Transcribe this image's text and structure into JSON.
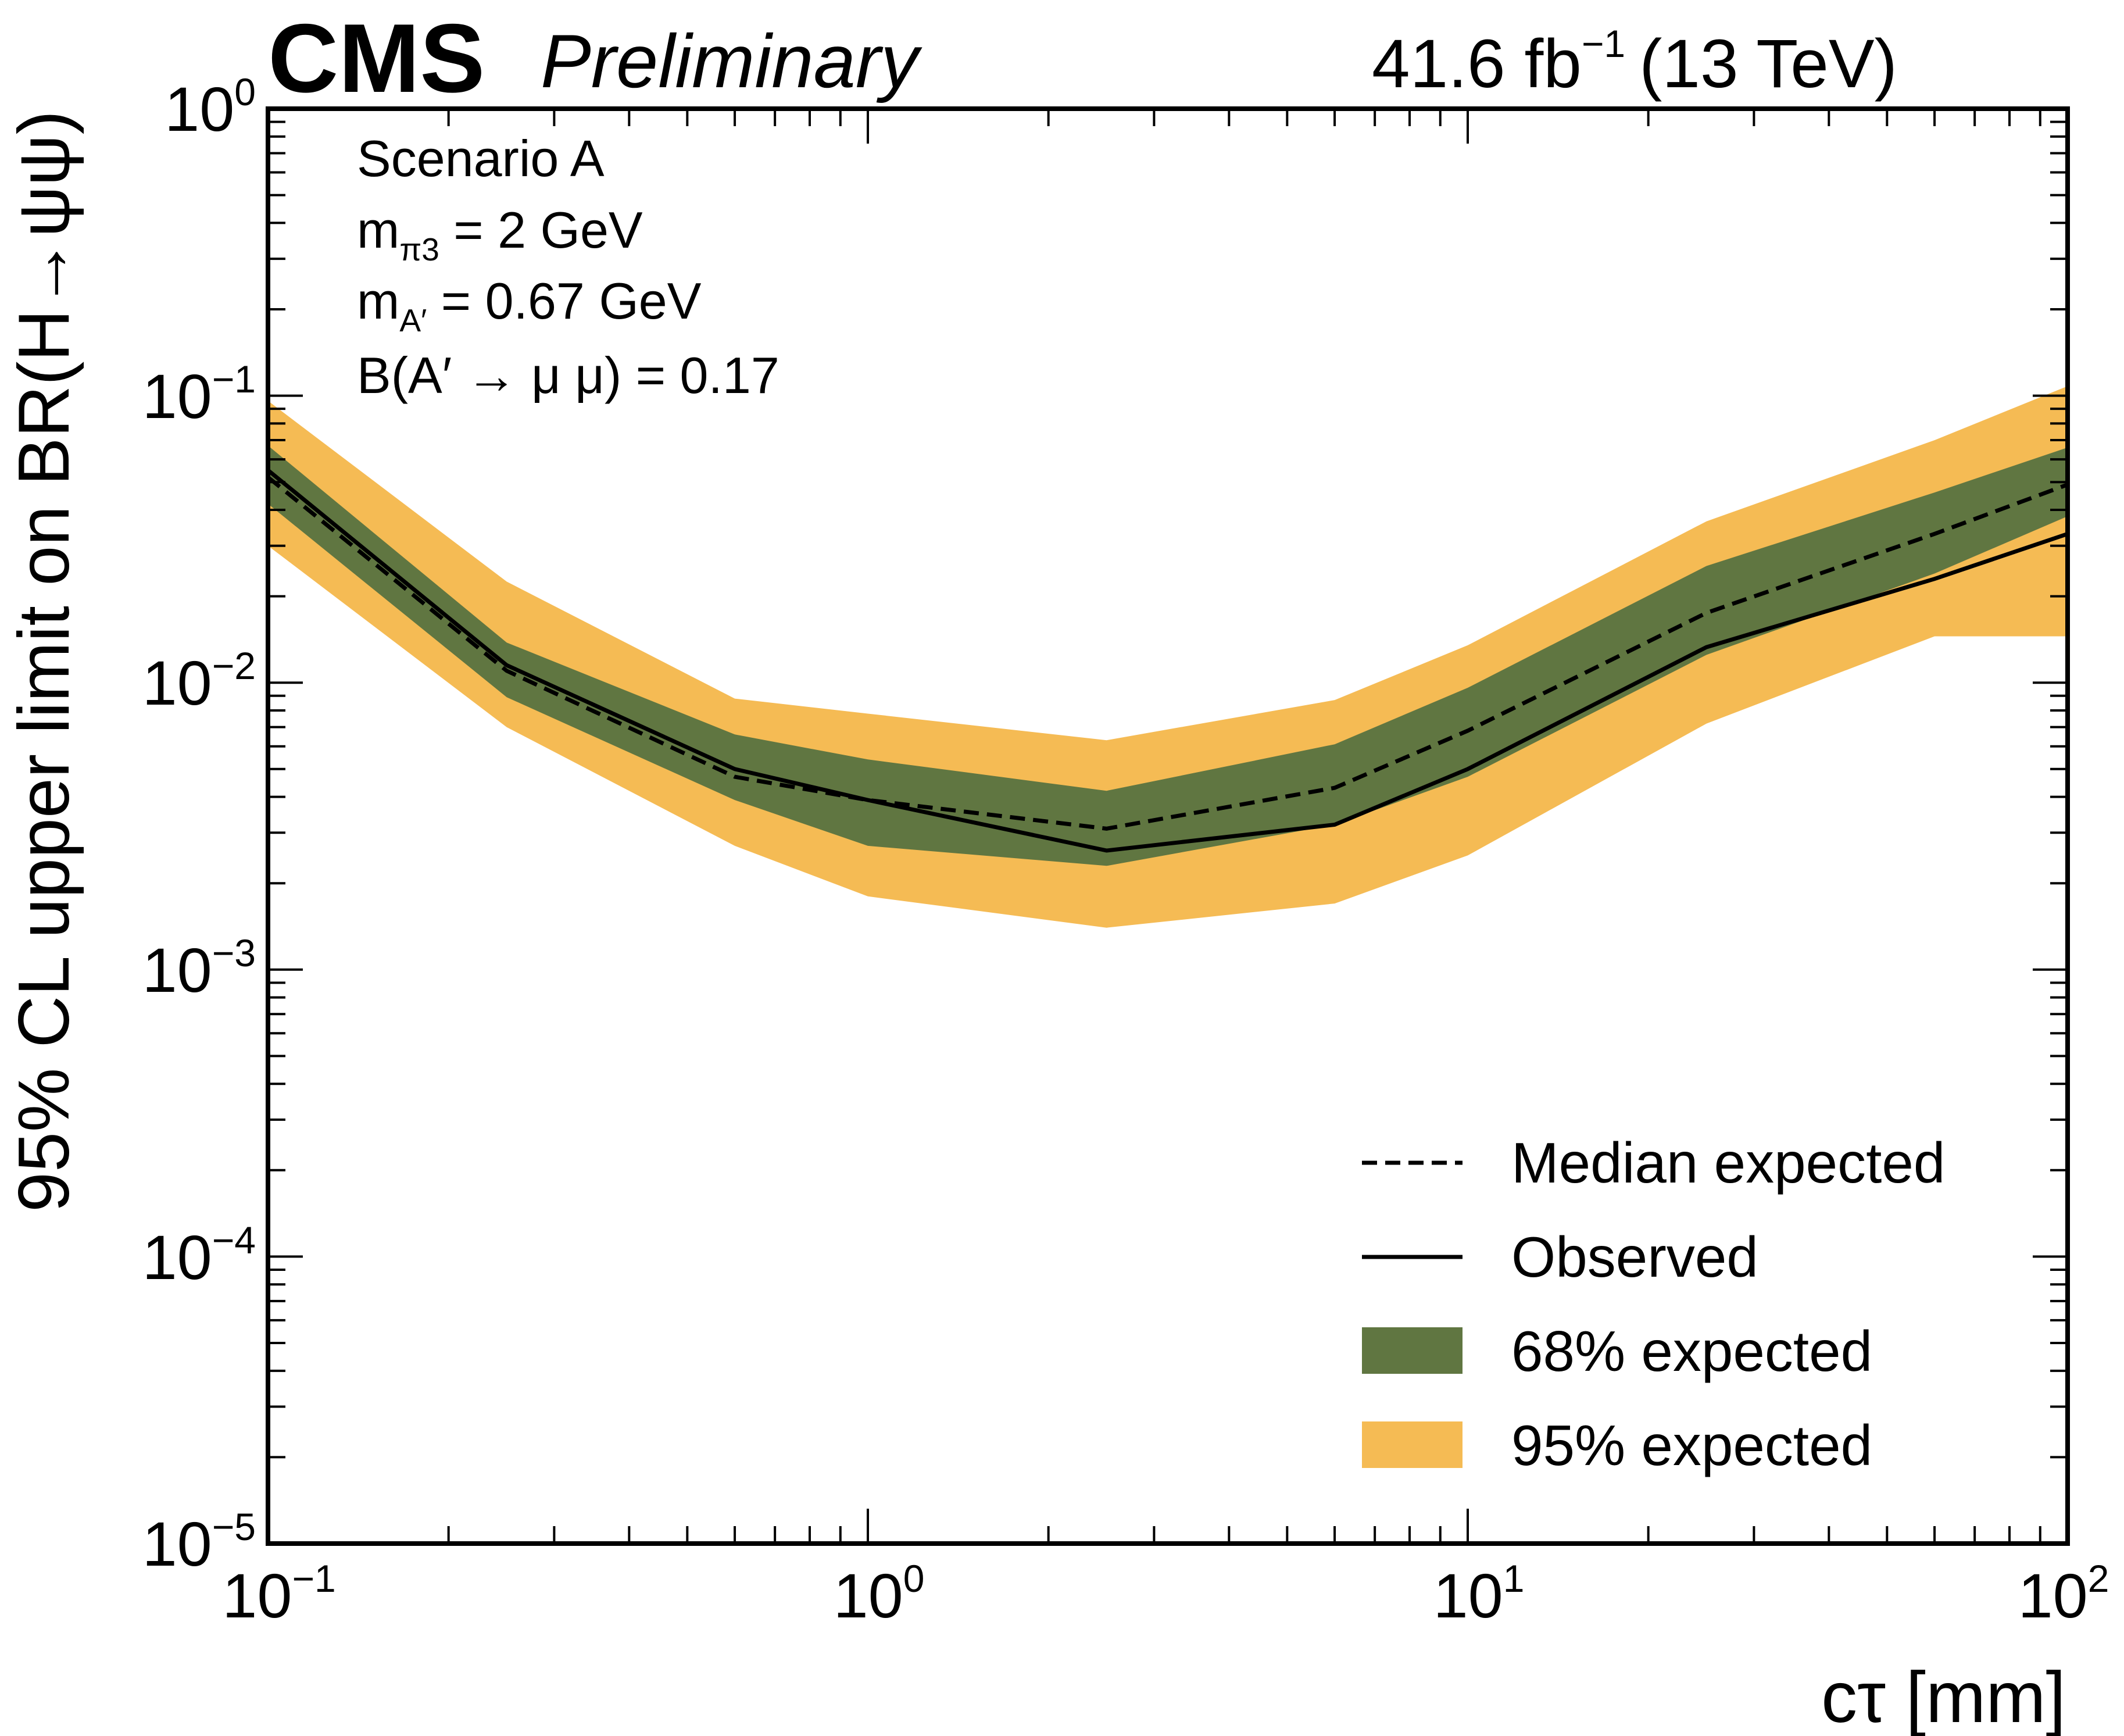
{
  "header": {
    "experiment": "CMS",
    "status": "Preliminary",
    "luminosity": "41.6 fb",
    "lumi_exponent": "−1",
    "energy": "(13 TeV)"
  },
  "info_box": {
    "scenario": "Scenario A",
    "mpi_symbol": "m",
    "mpi_sub": "π3",
    "mpi_value": " = 2 GeV",
    "ma_symbol": "m",
    "ma_sub": "A′",
    "ma_value": " = 0.67 GeV",
    "br_text": "B(A′ → μ μ) = 0.17"
  },
  "axes": {
    "xlabel": "cτ [mm]",
    "ylabel": "95% CL upper limit on BR(H→ψψ)",
    "x_ticks": [
      {
        "base": "10",
        "exp": "−1"
      },
      {
        "base": "10",
        "exp": "0"
      },
      {
        "base": "10",
        "exp": "1"
      },
      {
        "base": "10",
        "exp": "2"
      }
    ],
    "y_ticks": [
      {
        "base": "10",
        "exp": "0"
      },
      {
        "base": "10",
        "exp": "−1"
      },
      {
        "base": "10",
        "exp": "−2"
      },
      {
        "base": "10",
        "exp": "−3"
      },
      {
        "base": "10",
        "exp": "−4"
      },
      {
        "base": "10",
        "exp": "−5"
      }
    ]
  },
  "legend": {
    "median": "Median expected",
    "observed": "Observed",
    "band68": "68% expected",
    "band95": "95% expected"
  },
  "colors": {
    "band68": "#607641",
    "band95": "#F5BB54",
    "line": "#000000"
  },
  "chart_data": {
    "type": "line",
    "title": "CMS Preliminary, 41.6 fb^-1 (13 TeV)",
    "xlabel": "cτ [mm]",
    "ylabel": "95% CL upper limit on BR(H→ψψ)",
    "xscale": "log",
    "yscale": "log",
    "xlim": [
      0.1,
      100
    ],
    "ylim": [
      1e-05,
      1
    ],
    "legend_position": "bottom-right",
    "x": [
      0.1,
      0.25,
      0.6,
      1.0,
      2.5,
      6.0,
      10.0,
      25.0,
      60.0,
      100.0
    ],
    "series": [
      {
        "name": "Observed",
        "style": "solid",
        "values": [
          0.055,
          0.0115,
          0.005,
          0.0039,
          0.0026,
          0.0032,
          0.005,
          0.0133,
          0.023,
          0.033
        ]
      },
      {
        "name": "Median expected",
        "style": "dashed",
        "values": [
          0.052,
          0.011,
          0.0047,
          0.0039,
          0.0031,
          0.0043,
          0.0068,
          0.0175,
          0.033,
          0.049
        ]
      },
      {
        "name": "68% expected (upper)",
        "values": [
          0.067,
          0.0138,
          0.0066,
          0.0054,
          0.0042,
          0.0061,
          0.0096,
          0.0255,
          0.046,
          0.066
        ]
      },
      {
        "name": "68% expected (lower)",
        "values": [
          0.042,
          0.0089,
          0.0039,
          0.0027,
          0.0023,
          0.0032,
          0.0047,
          0.0125,
          0.024,
          0.038
        ]
      },
      {
        "name": "95% expected (upper)",
        "values": [
          0.096,
          0.0225,
          0.0088,
          0.0078,
          0.0063,
          0.0087,
          0.0135,
          0.0365,
          0.07,
          0.108
        ]
      },
      {
        "name": "95% expected (lower)",
        "values": [
          0.03,
          0.007,
          0.0027,
          0.0018,
          0.0014,
          0.0017,
          0.0025,
          0.0072,
          0.0145,
          0.0145
        ]
      }
    ]
  }
}
